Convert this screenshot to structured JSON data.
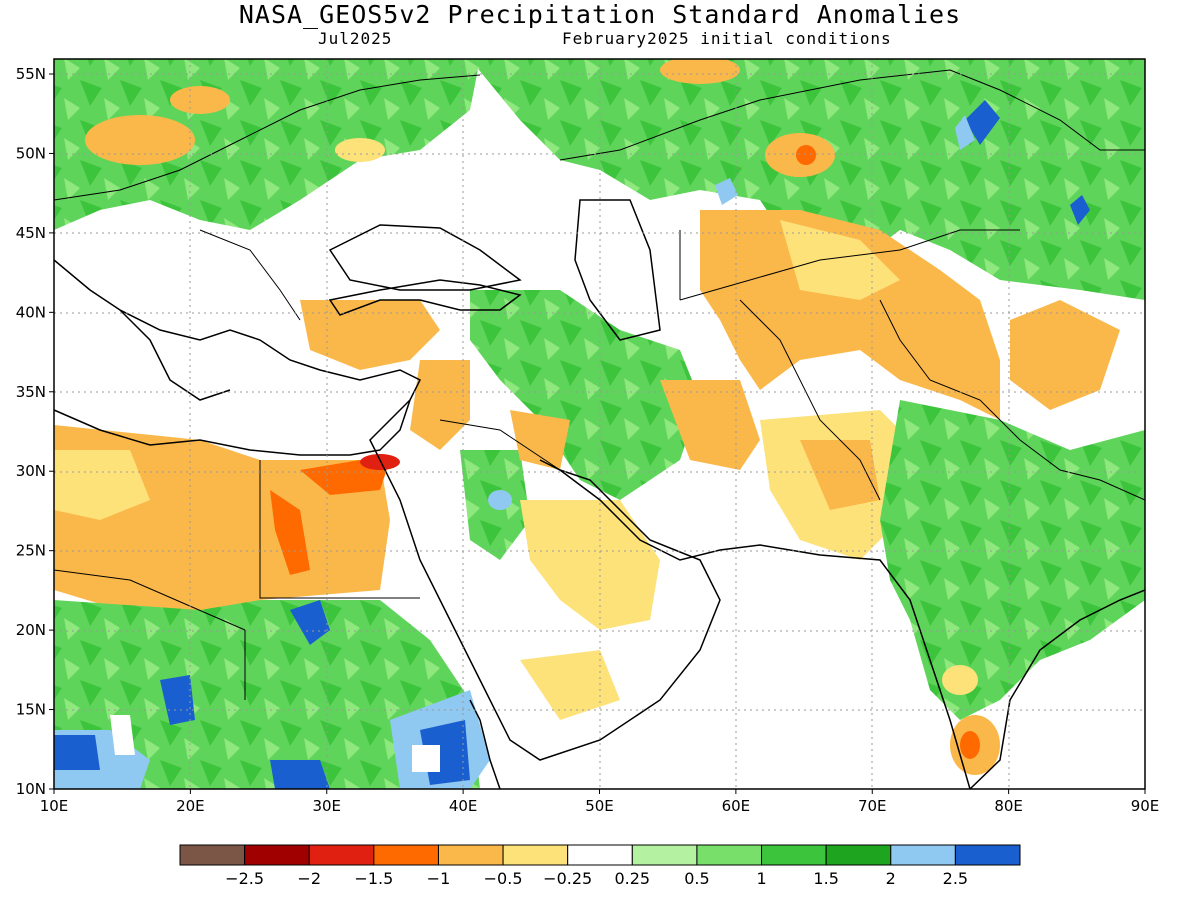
{
  "title": "NASA_GEOS5v2 Precipitation Standard Anomalies",
  "month": "Jul2025",
  "init": "February2025 initial conditions",
  "lat_labels": [
    "10N",
    "15N",
    "20N",
    "25N",
    "30N",
    "35N",
    "40N",
    "45N",
    "50N",
    "55N"
  ],
  "lon_labels": [
    "10E",
    "20E",
    "30E",
    "40E",
    "50E",
    "60E",
    "70E",
    "80E",
    "90E"
  ],
  "colorbar": {
    "colors": [
      "#7b5647",
      "#a00000",
      "#e02010",
      "#ff6a00",
      "#fbb84a",
      "#fde27a",
      "#ffffff",
      "#b4f2a2",
      "#78e06a",
      "#3cc43c",
      "#1ea41e",
      "#8fc8f0",
      "#1a5fd0"
    ],
    "labels": [
      "-2.5",
      "-2",
      "-1.5",
      "-1",
      "-0.5",
      "-0.25",
      "0.25",
      "0.5",
      "1",
      "1.5",
      "2",
      "2.5"
    ]
  }
}
